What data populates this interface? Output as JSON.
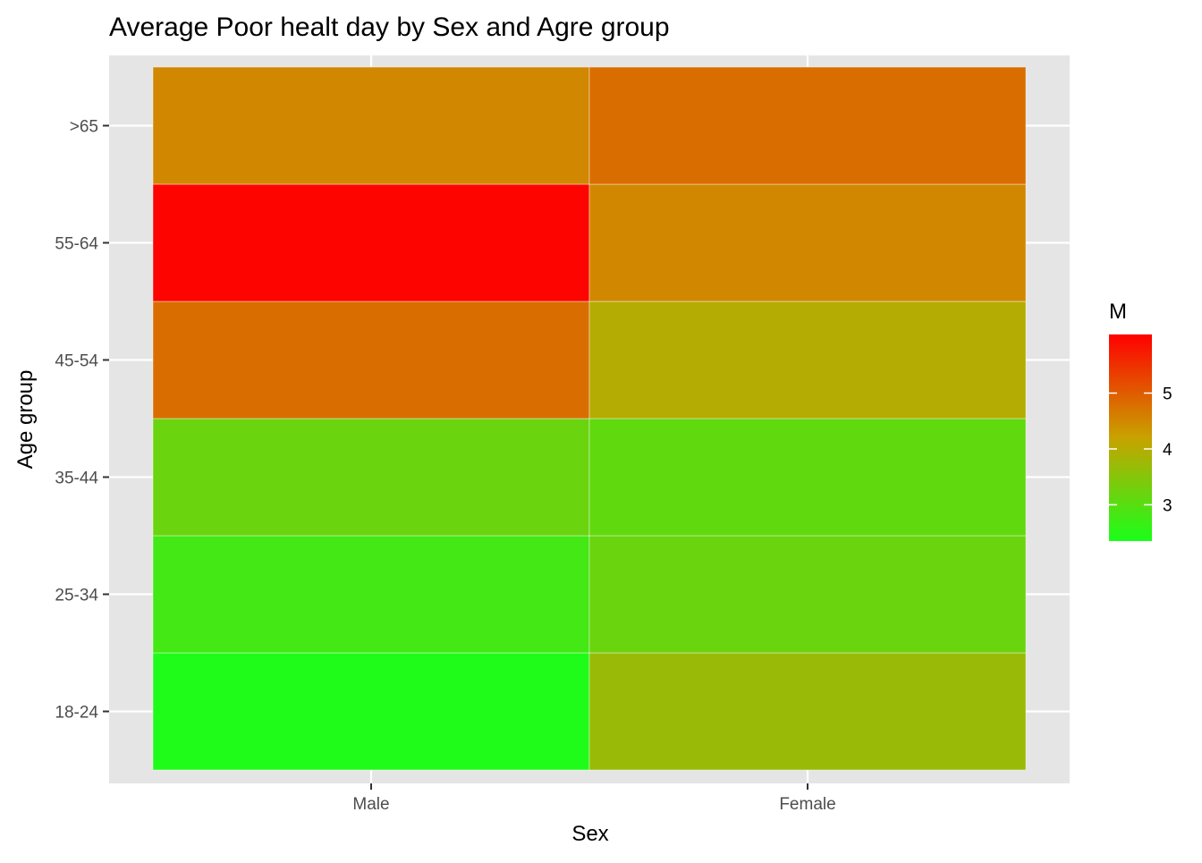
{
  "chart_data": {
    "type": "heatmap",
    "title": "Average Poor healt day by Sex and Agre group",
    "xlabel": "Sex",
    "ylabel": "Age group",
    "x_categories": [
      "Male",
      "Female"
    ],
    "y_categories": [
      "18-24",
      "25-34",
      "35-44",
      "45-54",
      "55-64",
      ">65"
    ],
    "values": {
      "Male": [
        2.4,
        2.8,
        3.2,
        4.8,
        6.0,
        4.5
      ],
      "Female": [
        3.7,
        3.2,
        3.1,
        4.0,
        4.5,
        4.8
      ]
    },
    "legend": {
      "title": "M",
      "position": "right",
      "breaks": [
        3,
        4,
        5
      ],
      "range": [
        2.35,
        6.05
      ],
      "low_color": "#1aff1a",
      "mid_color": "#c8a200",
      "high_color": "#ff0000"
    },
    "panel_background": "#e5e5e5",
    "grid": true
  }
}
